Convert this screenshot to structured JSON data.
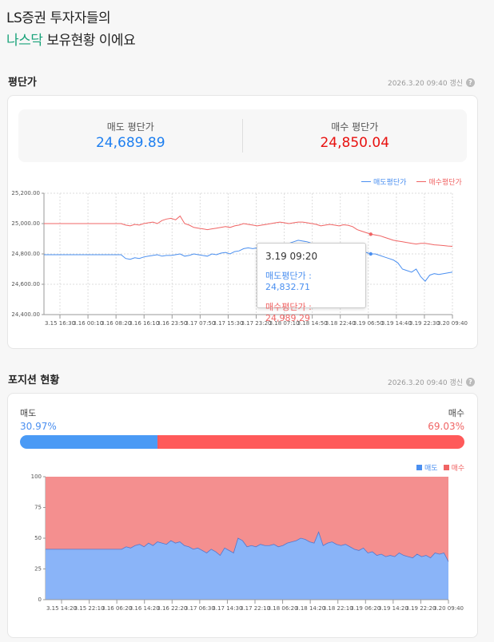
{
  "header": {
    "line1": "LS증권 투자자들의",
    "line2_accent": "나스닥",
    "line2_rest": " 보유현황 이에요"
  },
  "avg": {
    "section_title": "평단가",
    "updated": "2026.3.20 09:40 갱신",
    "help_icon": "question-icon",
    "sell_label": "매도 평단가",
    "sell_value": "24,689.89",
    "buy_label": "매수 평단가",
    "buy_value": "24,850.04",
    "tooltip": {
      "time": "3.19 09:20",
      "sell": "매도평단가 : 24,832.71",
      "buy": "매수평단가 : 24,989.29"
    }
  },
  "position": {
    "section_title": "포지션 현황",
    "updated": "2026.3.20 09:40 갱신",
    "sell_label": "매도",
    "sell_pct": "30.97%",
    "buy_label": "매수",
    "buy_pct": "69.03%",
    "sell_fraction": 30.97
  },
  "colors": {
    "sell": "#4a8ff0",
    "buy": "#f06464",
    "accent": "#1aa37a"
  },
  "chart_data": [
    {
      "type": "line",
      "x_range": [
        "3.15 11:00",
        "3.20 09:40"
      ],
      "ylim": [
        24400,
        25200
      ],
      "grid": true,
      "legend": "top-right",
      "yticks": [
        "25,200.00",
        "25,000.00",
        "24,800.00",
        "24,600.00",
        "24,400.00"
      ],
      "xticks": [
        "3.15 16:30",
        "3.16 00:10",
        "3.16 08:20",
        "3.16 16:10",
        "3.16 23:50",
        "3.17 07:50",
        "3.17 15:30",
        "3.17 23:20",
        "3.18 07:10",
        "3.18 14:50",
        "3.18 22:40",
        "3.19 06:50",
        "3.19 14:40",
        "3.19 22:30",
        "3.20 09:40"
      ],
      "series": [
        {
          "name": "매도평단가",
          "color": "#4a8ff0",
          "values": [
            24795,
            24795,
            24795,
            24795,
            24795,
            24795,
            24795,
            24795,
            24795,
            24795,
            24795,
            24795,
            24795,
            24795,
            24795,
            24795,
            24795,
            24795,
            24770,
            24765,
            24775,
            24770,
            24780,
            24785,
            24790,
            24795,
            24785,
            24790,
            24790,
            24795,
            24800,
            24785,
            24790,
            24800,
            24795,
            24790,
            24785,
            24800,
            24795,
            24805,
            24810,
            24800,
            24815,
            24820,
            24835,
            24840,
            24835,
            24840,
            24840,
            24845,
            24845,
            24850,
            24855,
            24860,
            24870,
            24880,
            24890,
            24885,
            24880,
            24870,
            24855,
            24840,
            24835,
            24830,
            24835,
            24830,
            24840,
            24830,
            24832,
            24825,
            24815,
            24810,
            24800,
            24800,
            24790,
            24780,
            24770,
            24760,
            24740,
            24700,
            24690,
            24680,
            24700,
            24650,
            24620,
            24660,
            24670,
            24665,
            24670,
            24675,
            24680
          ]
        },
        {
          "name": "매수평단가",
          "color": "#f06464",
          "values": [
            25000,
            25000,
            25000,
            25000,
            25000,
            25000,
            25000,
            25000,
            25000,
            25000,
            25000,
            25000,
            25000,
            25000,
            25000,
            25000,
            25000,
            25000,
            24990,
            24985,
            24995,
            24990,
            25000,
            25005,
            25010,
            25000,
            25020,
            25030,
            25035,
            25025,
            25050,
            25000,
            24990,
            24975,
            24970,
            24965,
            24960,
            24965,
            24970,
            24975,
            24980,
            24975,
            24985,
            24990,
            25000,
            24995,
            24990,
            24985,
            24990,
            24995,
            25000,
            25005,
            25010,
            25005,
            25000,
            25005,
            25010,
            25010,
            25005,
            25000,
            24995,
            24985,
            24990,
            24995,
            24990,
            24985,
            24992,
            24989,
            24980,
            24960,
            24950,
            24940,
            24930,
            24925,
            24920,
            24910,
            24900,
            24890,
            24885,
            24880,
            24875,
            24870,
            24865,
            24870,
            24870,
            24865,
            24860,
            24858,
            24855,
            24852,
            24850
          ]
        }
      ]
    },
    {
      "type": "area",
      "stacked": true,
      "ylim": [
        0,
        100
      ],
      "grid": false,
      "legend": "top-right",
      "yticks": [
        "100",
        "75",
        "50",
        "25",
        "0"
      ],
      "xticks": [
        "3.15 14:20",
        "3.15 22:10",
        "3.16 06:20",
        "3.16 14:20",
        "3.16 22:20",
        "3.17 06:30",
        "3.17 14:30",
        "3.17 22:10",
        "3.18 06:20",
        "3.18 14:20",
        "3.18 22:10",
        "3.19 06:20",
        "3.19 14:20",
        "3.19 22:20",
        "3.20 09:40"
      ],
      "series": [
        {
          "name": "매도",
          "color": "#8ab4f8",
          "values": [
            41,
            41,
            41,
            41,
            41,
            41,
            41,
            41,
            41,
            41,
            41,
            41,
            41,
            41,
            41,
            41,
            41,
            41,
            43,
            42,
            44,
            45,
            43,
            46,
            44,
            47,
            46,
            45,
            48,
            46,
            47,
            44,
            43,
            41,
            42,
            40,
            38,
            41,
            39,
            36,
            42,
            40,
            38,
            50,
            48,
            43,
            44,
            43,
            45,
            44,
            44,
            45,
            43,
            44,
            46,
            47,
            48,
            50,
            49,
            47,
            46,
            55,
            44,
            46,
            47,
            45,
            44,
            45,
            43,
            41,
            40,
            42,
            38,
            39,
            36,
            37,
            35,
            36,
            35,
            38,
            36,
            35,
            34,
            37,
            35,
            36,
            34,
            38,
            37,
            38,
            31
          ]
        },
        {
          "name": "매수",
          "color": "#f48f8f",
          "values": [
            59,
            59,
            59,
            59,
            59,
            59,
            59,
            59,
            59,
            59,
            59,
            59,
            59,
            59,
            59,
            59,
            59,
            59,
            57,
            58,
            56,
            55,
            57,
            54,
            56,
            53,
            54,
            55,
            52,
            54,
            53,
            56,
            57,
            59,
            58,
            60,
            62,
            59,
            61,
            64,
            58,
            60,
            62,
            50,
            52,
            57,
            56,
            57,
            55,
            56,
            56,
            55,
            57,
            56,
            54,
            53,
            52,
            50,
            51,
            53,
            54,
            45,
            56,
            54,
            53,
            55,
            56,
            55,
            57,
            59,
            60,
            58,
            62,
            61,
            64,
            63,
            65,
            64,
            65,
            62,
            64,
            65,
            66,
            63,
            65,
            64,
            66,
            62,
            63,
            62,
            69
          ]
        }
      ]
    }
  ]
}
